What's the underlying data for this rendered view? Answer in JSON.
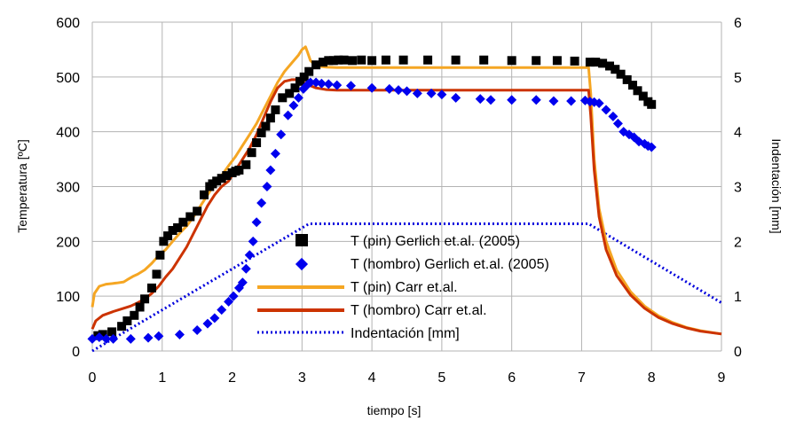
{
  "chart_data": {
    "type": "scatter",
    "xlabel": "tiempo [s]",
    "ylabel": "Temperatura [ºC]",
    "y2label": "Indentación [mm]",
    "xlim": [
      0,
      9
    ],
    "ylim": [
      0,
      600
    ],
    "y2lim": [
      0,
      6
    ],
    "xticks": [
      "0",
      "1",
      "2",
      "3",
      "4",
      "5",
      "6",
      "7",
      "8",
      "9"
    ],
    "yticks": [
      "0",
      "100",
      "200",
      "300",
      "400",
      "500",
      "600"
    ],
    "y2ticks": [
      "0",
      "1",
      "2",
      "3",
      "4",
      "5",
      "6"
    ],
    "grid": true,
    "legend_position": "center-right",
    "series": [
      {
        "name": "T (pin) Gerlich et.al. (2005)",
        "marker": "square",
        "color": "#000000",
        "axis": "left",
        "x": [
          0.08,
          0.15,
          0.28,
          0.42,
          0.5,
          0.6,
          0.68,
          0.75,
          0.85,
          0.92,
          0.97,
          1.02,
          1.08,
          1.15,
          1.22,
          1.3,
          1.4,
          1.5,
          1.6,
          1.68,
          1.72,
          1.78,
          1.85,
          1.92,
          2.0,
          2.05,
          2.1,
          2.2,
          2.28,
          2.35,
          2.42,
          2.48,
          2.55,
          2.62,
          2.72,
          2.82,
          2.9,
          2.97,
          3.03,
          3.1,
          3.2,
          3.3,
          3.38,
          3.45,
          3.52,
          3.6,
          3.72,
          3.85,
          4.0,
          4.2,
          4.45,
          4.8,
          5.2,
          5.6,
          6.0,
          6.35,
          6.65,
          6.9,
          7.12,
          7.2,
          7.3,
          7.4,
          7.48,
          7.56,
          7.65,
          7.73,
          7.8,
          7.88,
          7.95,
          8.0
        ],
        "y": [
          28,
          30,
          35,
          45,
          55,
          65,
          80,
          95,
          115,
          140,
          175,
          200,
          210,
          220,
          225,
          235,
          245,
          255,
          285,
          300,
          305,
          310,
          315,
          320,
          325,
          328,
          330,
          340,
          362,
          380,
          398,
          410,
          425,
          440,
          462,
          470,
          480,
          492,
          500,
          510,
          522,
          527,
          530,
          530,
          531,
          531,
          530,
          531,
          530,
          531,
          531,
          531,
          531,
          531,
          530,
          530,
          530,
          529,
          527,
          527,
          525,
          520,
          514,
          505,
          495,
          485,
          475,
          465,
          455,
          450
        ]
      },
      {
        "name": "T (hombro) Gerlich et.al. (2005)",
        "marker": "diamond",
        "color": "#0000ee",
        "axis": "left",
        "x": [
          0.0,
          0.1,
          0.2,
          0.3,
          0.55,
          0.8,
          0.95,
          1.25,
          1.5,
          1.65,
          1.75,
          1.85,
          1.95,
          2.02,
          2.1,
          2.15,
          2.2,
          2.25,
          2.3,
          2.35,
          2.42,
          2.5,
          2.55,
          2.62,
          2.7,
          2.8,
          2.88,
          2.95,
          3.02,
          3.08,
          3.12,
          3.2,
          3.28,
          3.38,
          3.5,
          3.7,
          4.0,
          4.25,
          4.38,
          4.5,
          4.65,
          4.85,
          5.0,
          5.2,
          5.55,
          5.7,
          6.0,
          6.35,
          6.6,
          6.85,
          7.05,
          7.12,
          7.18,
          7.25,
          7.35,
          7.45,
          7.52,
          7.6,
          7.68,
          7.75,
          7.82,
          7.9,
          7.95,
          8.0
        ],
        "y": [
          22,
          25,
          22,
          22,
          22,
          24,
          27,
          30,
          38,
          50,
          60,
          75,
          90,
          100,
          115,
          125,
          150,
          175,
          200,
          235,
          270,
          300,
          330,
          360,
          395,
          430,
          448,
          462,
          478,
          486,
          490,
          490,
          488,
          487,
          485,
          484,
          480,
          478,
          476,
          474,
          470,
          470,
          468,
          462,
          460,
          458,
          458,
          458,
          456,
          456,
          457,
          455,
          454,
          452,
          440,
          428,
          415,
          400,
          395,
          390,
          382,
          378,
          374,
          372
        ]
      },
      {
        "name": "T (pin) Carr et.al.",
        "marker": "line",
        "color": "#f5a623",
        "axis": "left",
        "x": [
          0.0,
          0.03,
          0.1,
          0.2,
          0.35,
          0.45,
          0.5,
          0.58,
          0.65,
          0.75,
          0.85,
          0.95,
          1.05,
          1.15,
          1.25,
          1.35,
          1.45,
          1.55,
          1.65,
          1.75,
          1.85,
          1.95,
          2.05,
          2.15,
          2.25,
          2.35,
          2.45,
          2.55,
          2.65,
          2.75,
          2.85,
          2.95,
          3.0,
          3.05,
          3.08,
          3.12,
          3.2,
          3.35,
          3.5,
          4.0,
          5.0,
          6.0,
          7.0,
          7.1,
          7.13,
          7.18,
          7.25,
          7.35,
          7.5,
          7.7,
          7.9,
          8.1,
          8.3,
          8.5,
          8.7,
          9.0
        ],
        "y": [
          80,
          105,
          118,
          122,
          124,
          126,
          130,
          136,
          140,
          148,
          160,
          174,
          185,
          200,
          215,
          228,
          245,
          265,
          285,
          305,
          320,
          338,
          355,
          375,
          395,
          415,
          440,
          465,
          490,
          510,
          525,
          540,
          550,
          555,
          545,
          530,
          520,
          518,
          517,
          517,
          517,
          517,
          517,
          517,
          470,
          350,
          260,
          200,
          148,
          108,
          82,
          64,
          52,
          43,
          37,
          31
        ]
      },
      {
        "name": "T (hombro) Carr et.al.",
        "marker": "line",
        "color": "#cc3300",
        "axis": "left",
        "x": [
          0.0,
          0.05,
          0.15,
          0.3,
          0.45,
          0.55,
          0.65,
          0.75,
          0.85,
          0.95,
          1.05,
          1.15,
          1.25,
          1.35,
          1.45,
          1.55,
          1.65,
          1.75,
          1.85,
          1.95,
          2.05,
          2.15,
          2.25,
          2.35,
          2.45,
          2.55,
          2.65,
          2.75,
          2.85,
          2.95,
          3.02,
          3.1,
          3.2,
          3.35,
          3.5,
          4.0,
          5.0,
          6.0,
          7.0,
          7.1,
          7.13,
          7.18,
          7.25,
          7.35,
          7.5,
          7.7,
          7.9,
          8.1,
          8.3,
          8.5,
          8.7,
          9.0
        ],
        "y": [
          40,
          55,
          65,
          72,
          78,
          82,
          88,
          95,
          105,
          118,
          135,
          150,
          170,
          190,
          215,
          240,
          265,
          285,
          300,
          310,
          330,
          350,
          370,
          395,
          425,
          455,
          480,
          492,
          495,
          495,
          490,
          485,
          480,
          477,
          476,
          476,
          476,
          476,
          476,
          476,
          430,
          330,
          245,
          185,
          138,
          102,
          78,
          61,
          50,
          42,
          36,
          31
        ]
      },
      {
        "name": "Indentación [mm]",
        "marker": "dotted-line",
        "color": "#0000dd",
        "axis": "right",
        "x": [
          0.0,
          3.1,
          7.1,
          9.0
        ],
        "y": [
          0.0,
          2.32,
          2.32,
          0.88
        ]
      }
    ]
  }
}
